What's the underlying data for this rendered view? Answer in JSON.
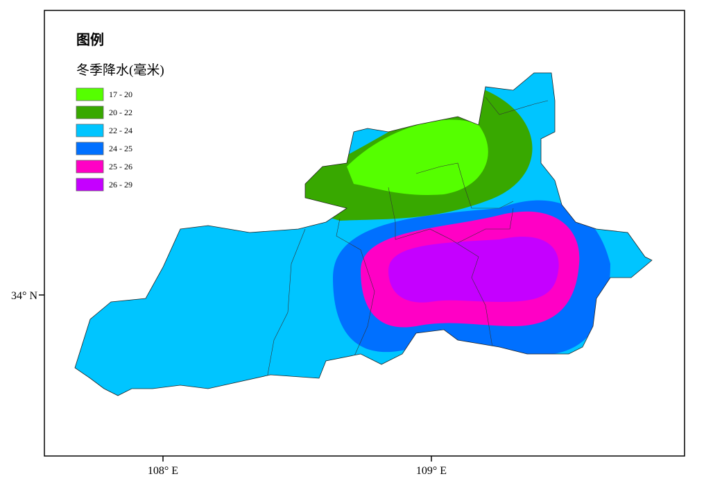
{
  "legend": {
    "title": "图例",
    "subtitle": "冬季降水(毫米)",
    "items": [
      {
        "label": "17 - 20",
        "color": "#55ff00"
      },
      {
        "label": "20 - 22",
        "color": "#38a800"
      },
      {
        "label": "22 - 24",
        "color": "#00c5ff"
      },
      {
        "label": "24 - 25",
        "color": "#0070ff"
      },
      {
        "label": "25 - 26",
        "color": "#ff00c5"
      },
      {
        "label": "26 - 29",
        "color": "#c500ff"
      }
    ]
  },
  "axes": {
    "y_label": "34° N",
    "x_labels": [
      "108° E",
      "109° E"
    ]
  }
}
